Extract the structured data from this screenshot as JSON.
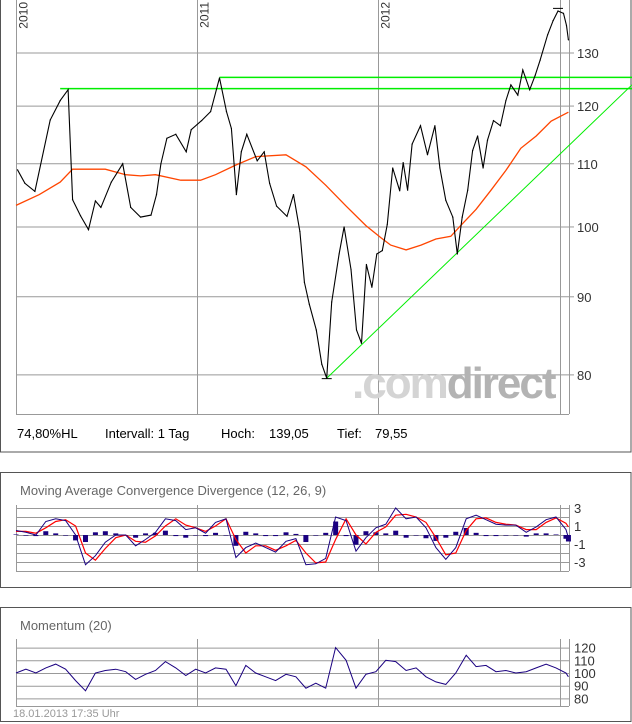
{
  "info": {
    "range_label": "74,80%HL",
    "interval": "Intervall: 1 Tag",
    "high_label": "Hoch:",
    "high_value": "139,05",
    "low_label": "Tief:",
    "low_value": "79,55"
  },
  "logo": {
    "part1": ".com",
    "part2": "direct"
  },
  "timestamp": "18.01.2013 17:35 Uhr",
  "colors": {
    "price": "#000000",
    "moving_average": "#ff4500",
    "trendline": "#00ee00",
    "macd": "#1a0080",
    "signal": "#ff0000",
    "momentum": "#1a0080",
    "grid": "#999999"
  },
  "chart_data": [
    {
      "type": "line",
      "title": "",
      "y_scale": "log",
      "ylim": [
        75,
        141
      ],
      "year_labels": [
        "2010",
        "2011",
        "2012"
      ],
      "year_dates": [
        "2010-01-01",
        "2011-01-01",
        "2012-01-01",
        "2013-01-01"
      ],
      "yticks": [
        80,
        90,
        100,
        110,
        120,
        130
      ],
      "ytick_labels": [
        "80",
        "90",
        "100",
        "110",
        "120",
        "130"
      ],
      "grid": true,
      "price": [
        [
          "2010-01-04",
          109
        ],
        [
          "2010-01-19",
          106.8
        ],
        [
          "2010-02-08",
          105.5
        ],
        [
          "2010-03-11",
          117.5
        ],
        [
          "2010-03-31",
          121
        ],
        [
          "2010-04-16",
          123
        ],
        [
          "2010-04-25",
          104.2
        ],
        [
          "2010-05-11",
          101.7
        ],
        [
          "2010-05-27",
          99.6
        ],
        [
          "2010-06-10",
          104
        ],
        [
          "2010-06-21",
          103
        ],
        [
          "2010-07-12",
          107
        ],
        [
          "2010-08-04",
          110
        ],
        [
          "2010-08-20",
          103
        ],
        [
          "2010-09-09",
          101.5
        ],
        [
          "2010-09-30",
          101.8
        ],
        [
          "2010-10-11",
          105
        ],
        [
          "2010-10-20",
          110
        ],
        [
          "2010-11-01",
          114.3
        ],
        [
          "2010-11-19",
          115
        ],
        [
          "2010-12-10",
          112
        ],
        [
          "2010-12-20",
          115.8
        ],
        [
          "2011-01-10",
          117.4
        ],
        [
          "2011-01-28",
          119
        ],
        [
          "2011-02-15",
          125.2
        ],
        [
          "2011-03-01",
          119
        ],
        [
          "2011-03-11",
          116
        ],
        [
          "2011-03-21",
          105
        ],
        [
          "2011-03-31",
          112
        ],
        [
          "2011-04-11",
          115
        ],
        [
          "2011-05-02",
          110.5
        ],
        [
          "2011-05-16",
          112
        ],
        [
          "2011-05-27",
          106.8
        ],
        [
          "2011-06-10",
          103.2
        ],
        [
          "2011-07-01",
          101.6
        ],
        [
          "2011-07-14",
          105
        ],
        [
          "2011-07-27",
          99.3
        ],
        [
          "2011-08-05",
          92
        ],
        [
          "2011-08-15",
          89
        ],
        [
          "2011-08-29",
          85.6
        ],
        [
          "2011-09-09",
          81.3
        ],
        [
          "2011-09-19",
          79.6
        ],
        [
          "2011-09-29",
          89.3
        ],
        [
          "2011-10-14",
          96
        ],
        [
          "2011-10-24",
          100
        ],
        [
          "2011-11-07",
          93.8
        ],
        [
          "2011-11-18",
          85.6
        ],
        [
          "2011-11-28",
          83.9
        ],
        [
          "2011-12-08",
          94.5
        ],
        [
          "2011-12-19",
          91.3
        ],
        [
          "2011-12-29",
          96
        ],
        [
          "2012-01-09",
          96.5
        ],
        [
          "2012-01-19",
          100.4
        ],
        [
          "2012-01-30",
          109.3
        ],
        [
          "2012-02-13",
          105.6
        ],
        [
          "2012-02-20",
          110.2
        ],
        [
          "2012-02-29",
          105.7
        ],
        [
          "2012-03-09",
          113.3
        ],
        [
          "2012-03-26",
          116.5
        ],
        [
          "2012-04-09",
          111.5
        ],
        [
          "2012-04-24",
          116.5
        ],
        [
          "2012-05-04",
          109.3
        ],
        [
          "2012-05-16",
          104.1
        ],
        [
          "2012-05-30",
          101.5
        ],
        [
          "2012-06-08",
          96
        ],
        [
          "2012-06-18",
          101.5
        ],
        [
          "2012-06-29",
          105.7
        ],
        [
          "2012-07-09",
          112.2
        ],
        [
          "2012-07-19",
          114.7
        ],
        [
          "2012-07-30",
          109.3
        ],
        [
          "2012-08-08",
          114
        ],
        [
          "2012-08-20",
          117.4
        ],
        [
          "2012-09-03",
          116.5
        ],
        [
          "2012-09-14",
          121
        ],
        [
          "2012-09-24",
          123.9
        ],
        [
          "2012-10-08",
          122
        ],
        [
          "2012-10-18",
          126.7
        ],
        [
          "2012-11-01",
          123
        ],
        [
          "2012-11-12",
          125.7
        ],
        [
          "2012-11-22",
          128.6
        ],
        [
          "2012-12-07",
          133.6
        ],
        [
          "2012-12-18",
          136.5
        ],
        [
          "2012-12-28",
          138.5
        ],
        [
          "2013-01-08",
          138
        ],
        [
          "2013-01-14",
          135.5
        ],
        [
          "2013-01-18",
          132.6
        ]
      ],
      "moving_average": [
        [
          "2010-01-01",
          103.3
        ],
        [
          "2010-02-17",
          105
        ],
        [
          "2010-03-31",
          107
        ],
        [
          "2010-04-25",
          109.1
        ],
        [
          "2010-06-30",
          109.1
        ],
        [
          "2010-08-10",
          108.2
        ],
        [
          "2010-09-09",
          108
        ],
        [
          "2010-10-09",
          108.2
        ],
        [
          "2010-11-29",
          107.3
        ],
        [
          "2011-01-08",
          107.3
        ],
        [
          "2011-02-07",
          108.2
        ],
        [
          "2011-03-20",
          109.8
        ],
        [
          "2011-04-29",
          111.2
        ],
        [
          "2011-06-29",
          111.5
        ],
        [
          "2011-08-08",
          109.5
        ],
        [
          "2011-09-17",
          106.5
        ],
        [
          "2011-10-28",
          103.2
        ],
        [
          "2011-12-07",
          100.2
        ],
        [
          "2012-01-06",
          98.4
        ],
        [
          "2012-01-26",
          97.3
        ],
        [
          "2012-02-26",
          96.6
        ],
        [
          "2012-03-27",
          97.3
        ],
        [
          "2012-04-26",
          98.2
        ],
        [
          "2012-05-26",
          98.6
        ],
        [
          "2012-06-15",
          100.2
        ],
        [
          "2012-07-16",
          102.7
        ],
        [
          "2012-08-15",
          105.7
        ],
        [
          "2012-09-14",
          108.9
        ],
        [
          "2012-10-14",
          112.6
        ],
        [
          "2012-11-14",
          114.7
        ],
        [
          "2012-12-14",
          117.3
        ],
        [
          "2013-01-18",
          118.9
        ]
      ],
      "support_lines": [
        {
          "from": "2010-03-31",
          "value": 123.2
        },
        {
          "from": "2011-02-15",
          "value": 125.3
        }
      ],
      "trendline": {
        "start": [
          "2011-09-19",
          79.6
        ],
        "end_value_at_right_edge": 123.9
      },
      "high_marker": {
        "date": "2012-12-28",
        "value": 139.05
      },
      "low_marker": {
        "date": "2011-09-19",
        "value": 79.55
      }
    },
    {
      "type": "line",
      "title": "Moving Average Convergence Divergence (12, 26, 9)",
      "ylim": [
        -4,
        3.3
      ],
      "yticks": [
        3,
        1,
        -1,
        -3
      ],
      "ytick_labels": [
        "3",
        "1",
        "-1",
        "-3"
      ],
      "gridlines": [
        3,
        2,
        1,
        0,
        -1,
        -2,
        -3,
        -4
      ],
      "dates": [
        "2010-01-01",
        "2010-01-21",
        "2010-02-10",
        "2010-03-02",
        "2010-03-22",
        "2010-04-11",
        "2010-05-01",
        "2010-05-21",
        "2010-06-10",
        "2010-06-30",
        "2010-07-21",
        "2010-08-10",
        "2010-08-30",
        "2010-09-19",
        "2010-10-09",
        "2010-10-29",
        "2010-11-19",
        "2010-12-09",
        "2010-12-29",
        "2011-01-18",
        "2011-02-07",
        "2011-02-28",
        "2011-03-20",
        "2011-04-09",
        "2011-04-29",
        "2011-05-19",
        "2011-06-08",
        "2011-06-29",
        "2011-07-19",
        "2011-08-08",
        "2011-08-28",
        "2011-09-17",
        "2011-10-07",
        "2011-10-28",
        "2011-11-17",
        "2011-12-07",
        "2011-12-27",
        "2012-01-16",
        "2012-02-05",
        "2012-02-26",
        "2012-03-17",
        "2012-04-06",
        "2012-04-26",
        "2012-05-16",
        "2012-06-05",
        "2012-06-26",
        "2012-07-16",
        "2012-08-05",
        "2012-08-25",
        "2012-09-14",
        "2012-10-04",
        "2012-10-25",
        "2012-11-14",
        "2012-12-04",
        "2012-12-24",
        "2013-01-13",
        "2013-01-18"
      ],
      "macd": [
        0.5,
        0.3,
        0.0,
        1.5,
        1.8,
        1.6,
        0.0,
        -3.3,
        -2.3,
        -0.8,
        0.0,
        0.0,
        -1.2,
        -0.5,
        0.3,
        1.8,
        1.6,
        0.6,
        0.8,
        0.2,
        1.4,
        1.8,
        -2.5,
        -1.4,
        -0.9,
        -1.4,
        -1.9,
        -0.7,
        -0.4,
        -3.3,
        -3.2,
        -2.6,
        2.0,
        1.6,
        -1.8,
        -0.3,
        0.8,
        1.2,
        3.0,
        1.8,
        2.0,
        0.8,
        -1.4,
        -2.7,
        -1.4,
        1.8,
        2.2,
        1.7,
        1.2,
        1.1,
        1.1,
        0.3,
        0.9,
        1.7,
        2.0,
        0.6,
        -0.3
      ],
      "signal": [
        0.4,
        0.4,
        0.2,
        0.8,
        1.5,
        1.7,
        1.0,
        -2.0,
        -2.8,
        -1.5,
        -0.3,
        0.0,
        -0.7,
        -0.8,
        -0.1,
        1.0,
        1.8,
        1.1,
        0.8,
        0.4,
        1.0,
        1.8,
        -0.5,
        -2.0,
        -1.2,
        -1.2,
        -1.7,
        -1.2,
        -0.6,
        -2.0,
        -3.1,
        -3.0,
        -0.5,
        1.8,
        0.0,
        -1.0,
        0.3,
        0.9,
        2.2,
        2.3,
        2.0,
        1.4,
        -0.3,
        -2.2,
        -2.0,
        0.5,
        1.8,
        1.9,
        1.4,
        1.2,
        1.1,
        0.6,
        0.6,
        1.4,
        1.9,
        1.3,
        0.9
      ]
    },
    {
      "type": "line",
      "title": "Momentum (20)",
      "ylim": [
        77,
        127
      ],
      "yticks": [
        120,
        110,
        100,
        90,
        80
      ],
      "ytick_labels": [
        "120",
        "110",
        "100",
        "90",
        "80"
      ],
      "momentum": [
        100,
        103,
        100,
        104,
        107,
        103,
        94,
        86,
        100,
        102,
        103,
        101,
        95,
        99,
        102,
        109,
        104,
        98,
        103,
        100,
        104,
        103,
        90,
        106,
        100,
        97,
        94,
        99,
        97,
        88,
        92,
        88,
        120,
        110,
        88,
        99,
        101,
        110,
        109,
        102,
        104,
        97,
        93,
        91,
        100,
        114,
        105,
        106,
        101,
        102,
        100,
        101,
        104,
        107,
        104,
        100,
        97
      ]
    }
  ]
}
